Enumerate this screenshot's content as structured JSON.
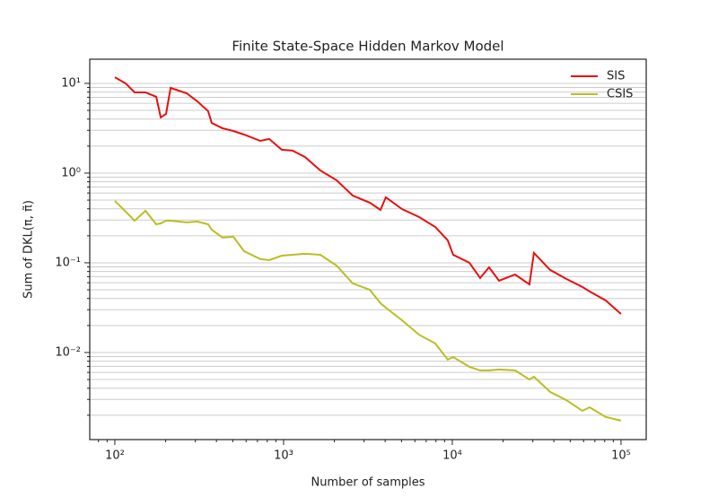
{
  "chart_data": {
    "type": "line",
    "title": "Finite State-Space Hidden Markov Model",
    "xlabel": "Number of samples",
    "ylabel": "Sum of DKL(π, π̃)",
    "xscale": "log",
    "yscale": "log",
    "grid": "y",
    "legend": "upper right",
    "xlim": [
      71,
      141000
    ],
    "ylim": [
      0.00107,
      18.6
    ],
    "xticks": [
      {
        "value": 100,
        "label": "10²"
      },
      {
        "value": 1000,
        "label": "10³"
      },
      {
        "value": 10000,
        "label": "10⁴"
      },
      {
        "value": 100000,
        "label": "10⁵"
      }
    ],
    "yticks": [
      {
        "value": 0.01,
        "label": "10⁻²"
      },
      {
        "value": 0.1,
        "label": "10⁻¹"
      },
      {
        "value": 1,
        "label": "10⁰"
      },
      {
        "value": 10,
        "label": "10¹"
      }
    ],
    "xminor_ticks": [
      80,
      90,
      200,
      300,
      400,
      500,
      600,
      700,
      800,
      900,
      2000,
      3000,
      4000,
      5000,
      6000,
      7000,
      8000,
      9000,
      20000,
      30000,
      40000,
      50000,
      60000,
      70000,
      80000,
      90000
    ],
    "yminor_ticks": [
      0.002,
      0.003,
      0.004,
      0.005,
      0.006,
      0.007,
      0.008,
      0.009,
      0.02,
      0.03,
      0.04,
      0.05,
      0.06,
      0.07,
      0.08,
      0.09,
      0.2,
      0.3,
      0.4,
      0.5,
      0.6,
      0.7,
      0.8,
      0.9,
      2,
      3,
      4,
      5,
      6,
      7,
      8,
      9
    ],
    "x": [
      100,
      116,
      131,
      152,
      176,
      187,
      201,
      214,
      267,
      308,
      357,
      375,
      435,
      504,
      583,
      728,
      822,
      975,
      1130,
      1343,
      1652,
      2061,
      2570,
      3243,
      3750,
      4036,
      5035,
      6353,
      7925,
      9400,
      10120,
      12620,
      14620,
      16520,
      18920,
      23550,
      28640,
      30480,
      38020,
      47420,
      59020,
      65160,
      81280,
      100000
    ],
    "series": [
      {
        "name": "SIS",
        "color": "#e8100e",
        "values": [
          11.7,
          10,
          7.94,
          7.94,
          7.08,
          4.17,
          4.57,
          8.91,
          7.76,
          6.31,
          4.9,
          3.63,
          3.16,
          2.95,
          2.69,
          2.29,
          2.4,
          1.82,
          1.78,
          1.51,
          1.07,
          0.832,
          0.562,
          0.468,
          0.389,
          0.537,
          0.398,
          0.324,
          0.251,
          0.178,
          0.123,
          0.1,
          0.0676,
          0.0891,
          0.0631,
          0.0741,
          0.0575,
          0.129,
          0.0832,
          0.0661,
          0.0537,
          0.0479,
          0.038,
          0.0269
        ]
      },
      {
        "name": "CSIS",
        "color": "#bcbd22",
        "values": [
          0.49,
          0.372,
          0.295,
          0.38,
          0.269,
          0.275,
          0.295,
          0.295,
          0.282,
          0.288,
          0.269,
          0.234,
          0.191,
          0.195,
          0.135,
          0.11,
          0.107,
          0.12,
          0.123,
          0.126,
          0.123,
          0.0933,
          0.0589,
          0.0501,
          0.0355,
          0.0316,
          0.0229,
          0.0158,
          0.0126,
          0.00832,
          0.00891,
          0.00692,
          0.00631,
          0.00631,
          0.00646,
          0.00631,
          0.00501,
          0.00537,
          0.00363,
          0.00295,
          0.00224,
          0.00245,
          0.00191,
          0.00174
        ]
      }
    ]
  }
}
